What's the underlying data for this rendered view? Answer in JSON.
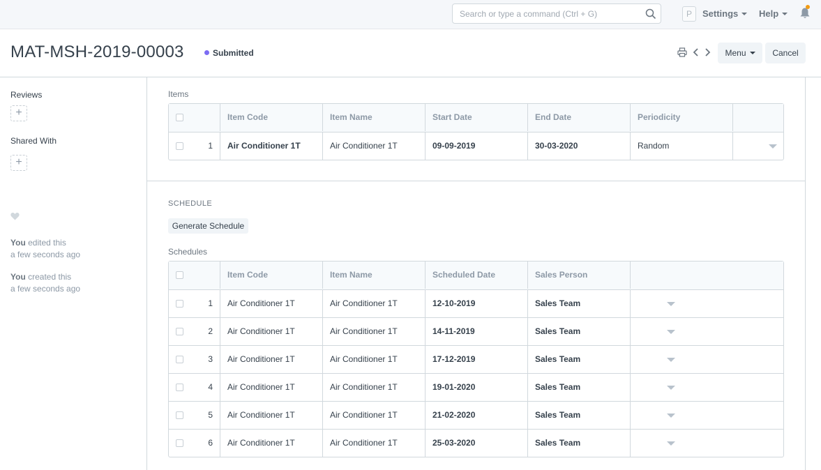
{
  "navbar": {
    "search_placeholder": "Search or type a command (Ctrl + G)",
    "avatar_letter": "P",
    "settings_label": "Settings",
    "help_label": "Help"
  },
  "page": {
    "title": "MAT-MSH-2019-00003",
    "status": "Submitted",
    "status_color": "#7c6cf3",
    "menu_label": "Menu",
    "cancel_label": "Cancel"
  },
  "sidebar": {
    "reviews_label": "Reviews",
    "shared_with_label": "Shared With",
    "add_symbol": "+",
    "timeline": [
      {
        "actor": "You",
        "action": "edited this",
        "time": "a few seconds ago"
      },
      {
        "actor": "You",
        "action": "created this",
        "time": "a few seconds ago"
      }
    ]
  },
  "items": {
    "label": "Items",
    "columns": [
      "Item Code",
      "Item Name",
      "Start Date",
      "End Date",
      "Periodicity"
    ],
    "rows": [
      {
        "idx": "1",
        "item_code": "Air Conditioner 1T",
        "item_name": "Air Conditioner 1T",
        "start_date": "09-09-2019",
        "end_date": "30-03-2020",
        "periodicity": "Random"
      }
    ]
  },
  "schedule": {
    "section_label": "SCHEDULE",
    "generate_label": "Generate Schedule",
    "label": "Schedules",
    "columns": [
      "Item Code",
      "Item Name",
      "Scheduled Date",
      "Sales Person"
    ],
    "rows": [
      {
        "idx": "1",
        "item_code": "Air Conditioner 1T",
        "item_name": "Air Conditioner 1T",
        "date": "12-10-2019",
        "sales_person": "Sales Team"
      },
      {
        "idx": "2",
        "item_code": "Air Conditioner 1T",
        "item_name": "Air Conditioner 1T",
        "date": "14-11-2019",
        "sales_person": "Sales Team"
      },
      {
        "idx": "3",
        "item_code": "Air Conditioner 1T",
        "item_name": "Air Conditioner 1T",
        "date": "17-12-2019",
        "sales_person": "Sales Team"
      },
      {
        "idx": "4",
        "item_code": "Air Conditioner 1T",
        "item_name": "Air Conditioner 1T",
        "date": "19-01-2020",
        "sales_person": "Sales Team"
      },
      {
        "idx": "5",
        "item_code": "Air Conditioner 1T",
        "item_name": "Air Conditioner 1T",
        "date": "21-02-2020",
        "sales_person": "Sales Team"
      },
      {
        "idx": "6",
        "item_code": "Air Conditioner 1T",
        "item_name": "Air Conditioner 1T",
        "date": "25-03-2020",
        "sales_person": "Sales Team"
      }
    ]
  },
  "colors": {
    "notification_dot": "#f39c12",
    "border": "#d1d8dd"
  }
}
